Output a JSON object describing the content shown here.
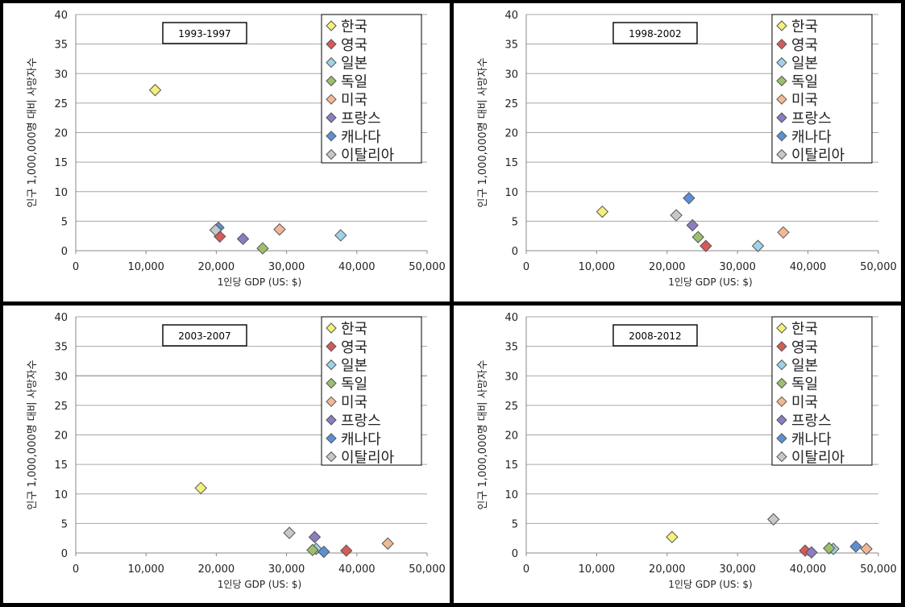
{
  "legend_items": [
    "한국",
    "영국",
    "일본",
    "독일",
    "미국",
    "프랑스",
    "캐나다",
    "이탈리아"
  ],
  "colors": {
    "한국": "#f5f07a",
    "영국": "#d65a58",
    "일본": "#9fd3e6",
    "독일": "#9cc06a",
    "미국": "#f2b896",
    "프랑스": "#8e7cc0",
    "캐나다": "#5b8fd6",
    "이탈리아": "#c8c8c8"
  },
  "chart_data": [
    {
      "type": "scatter",
      "title": "1993-1997",
      "xlabel": "1인당 GDP (US: $)",
      "ylabel": "인구 1,000,000명 대비 사망자수",
      "xlim": [
        0,
        50000
      ],
      "ylim": [
        0,
        40
      ],
      "x_ticks": [
        "0",
        "10,000",
        "20,000",
        "30,000",
        "40,000",
        "50,000"
      ],
      "y_ticks": [
        "0",
        "5",
        "10",
        "15",
        "20",
        "25",
        "30",
        "35",
        "40"
      ],
      "legend": "top-right",
      "series": [
        {
          "name": "한국",
          "x": 11300,
          "y": 27.2
        },
        {
          "name": "영국",
          "x": 20500,
          "y": 2.4
        },
        {
          "name": "일본",
          "x": 37700,
          "y": 2.6
        },
        {
          "name": "독일",
          "x": 26600,
          "y": 0.4
        },
        {
          "name": "미국",
          "x": 29000,
          "y": 3.6
        },
        {
          "name": "프랑스",
          "x": 23800,
          "y": 2.0
        },
        {
          "name": "캐나다",
          "x": 20300,
          "y": 3.9
        },
        {
          "name": "이탈리아",
          "x": 19900,
          "y": 3.5
        }
      ]
    },
    {
      "type": "scatter",
      "title": "1998-2002",
      "xlabel": "1인당 GDP (US: $)",
      "ylabel": "인구 1,000,000명 대비 사망자수",
      "xlim": [
        0,
        50000
      ],
      "ylim": [
        0,
        40
      ],
      "x_ticks": [
        "0",
        "10,000",
        "20,000",
        "30,000",
        "40,000",
        "50,000"
      ],
      "y_ticks": [
        "0",
        "5",
        "10",
        "15",
        "20",
        "25",
        "30",
        "35",
        "40"
      ],
      "legend": "top-right",
      "series": [
        {
          "name": "한국",
          "x": 10800,
          "y": 6.6
        },
        {
          "name": "영국",
          "x": 25500,
          "y": 0.8
        },
        {
          "name": "일본",
          "x": 32900,
          "y": 0.8
        },
        {
          "name": "독일",
          "x": 24400,
          "y": 2.3
        },
        {
          "name": "미국",
          "x": 36500,
          "y": 3.1
        },
        {
          "name": "프랑스",
          "x": 23600,
          "y": 4.3
        },
        {
          "name": "캐나다",
          "x": 23100,
          "y": 8.9
        },
        {
          "name": "이탈리아",
          "x": 21300,
          "y": 6.0
        }
      ]
    },
    {
      "type": "scatter",
      "title": "2003-2007",
      "xlabel": "1인당 GDP (US: $)",
      "ylabel": "인구 1,000,000명 대비 사망자수",
      "xlim": [
        0,
        50000
      ],
      "ylim": [
        0,
        40
      ],
      "x_ticks": [
        "0",
        "10,000",
        "20,000",
        "30,000",
        "40,000",
        "50,000"
      ],
      "y_ticks": [
        "0",
        "5",
        "10",
        "15",
        "20",
        "25",
        "30",
        "35",
        "40"
      ],
      "legend": "top-right",
      "series": [
        {
          "name": "한국",
          "x": 17800,
          "y": 11.0
        },
        {
          "name": "영국",
          "x": 38500,
          "y": 0.4
        },
        {
          "name": "일본",
          "x": 34200,
          "y": 0.7
        },
        {
          "name": "독일",
          "x": 33700,
          "y": 0.5
        },
        {
          "name": "미국",
          "x": 44400,
          "y": 1.6
        },
        {
          "name": "프랑스",
          "x": 34000,
          "y": 2.7
        },
        {
          "name": "캐나다",
          "x": 35300,
          "y": 0.2
        },
        {
          "name": "이탈리아",
          "x": 30400,
          "y": 3.4
        }
      ]
    },
    {
      "type": "scatter",
      "title": "2008-2012",
      "xlabel": "1인당 GDP (US: $)",
      "ylabel": "인구 1,000,000명 대비 사망자수",
      "xlim": [
        0,
        50000
      ],
      "ylim": [
        0,
        40
      ],
      "x_ticks": [
        "0",
        "10,000",
        "20,000",
        "30,000",
        "40,000",
        "50,000"
      ],
      "y_ticks": [
        "0",
        "5",
        "10",
        "15",
        "20",
        "25",
        "30",
        "35",
        "40"
      ],
      "legend": "top-right",
      "series": [
        {
          "name": "한국",
          "x": 20700,
          "y": 2.7
        },
        {
          "name": "영국",
          "x": 39600,
          "y": 0.4
        },
        {
          "name": "일본",
          "x": 43600,
          "y": 0.7
        },
        {
          "name": "독일",
          "x": 43000,
          "y": 0.8
        },
        {
          "name": "미국",
          "x": 48300,
          "y": 0.7
        },
        {
          "name": "프랑스",
          "x": 40500,
          "y": 0.1
        },
        {
          "name": "캐나다",
          "x": 46800,
          "y": 1.1
        },
        {
          "name": "이탈리아",
          "x": 35100,
          "y": 5.7
        }
      ]
    }
  ]
}
